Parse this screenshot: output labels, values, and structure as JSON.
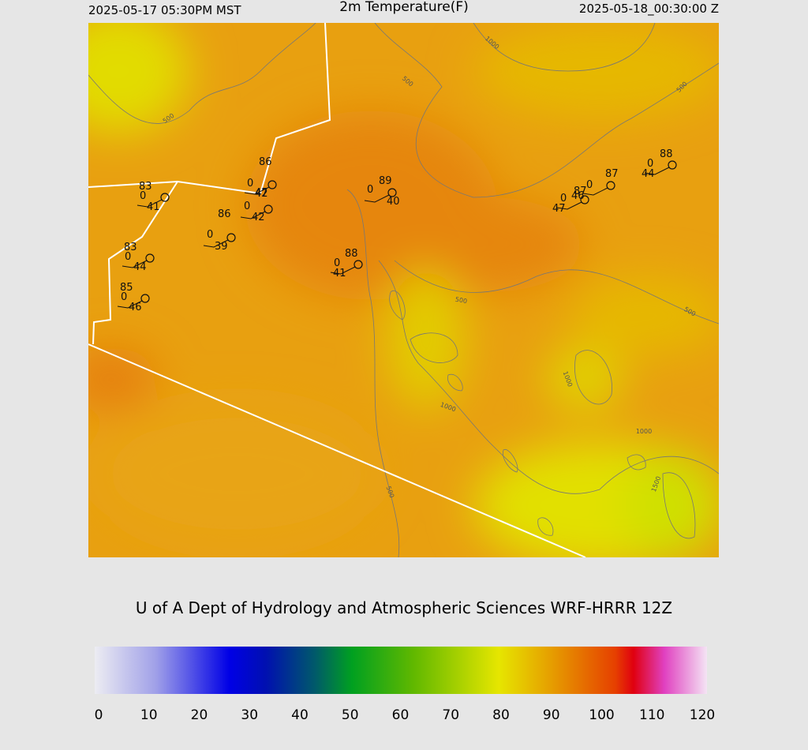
{
  "header": {
    "local_time": "2025-05-17 05:30PM MST",
    "title": "2m Temperature(F)",
    "utc_time": "2025-05-18_00:30:00 Z"
  },
  "stations": [
    {
      "temperature": 83,
      "sky": 0,
      "dewpoint": 41
    },
    {
      "temperature": 86,
      "sky": 0,
      "dewpoint": 47
    },
    {
      "temperature": 42,
      "sky": 0,
      "dewpoint": 42
    },
    {
      "temperature": 86,
      "sky": 0,
      "dewpoint": 39
    },
    {
      "temperature": 83,
      "sky": 0,
      "dewpoint": 44
    },
    {
      "temperature": 85,
      "sky": 0,
      "dewpoint": 46
    },
    {
      "temperature": 88,
      "sky": 0,
      "dewpoint": 41
    },
    {
      "temperature": 89,
      "sky": 0,
      "dewpoint": 40
    },
    {
      "temperature": 87,
      "sky": 0,
      "dewpoint": 46
    },
    {
      "temperature": 87,
      "sky": 0,
      "dewpoint": 47
    },
    {
      "temperature": 88,
      "sky": 0,
      "dewpoint": 44
    }
  ],
  "contour_labels": [
    500,
    1000,
    500,
    500,
    500,
    500,
    1000,
    1000,
    1000,
    1500,
    500
  ],
  "credit": "U of A Dept of Hydrology and Atmospheric Sciences WRF-HRRR 12Z",
  "colorbar": {
    "ticks": [
      0,
      10,
      20,
      30,
      40,
      50,
      60,
      70,
      80,
      90,
      100,
      110,
      120
    ]
  }
}
